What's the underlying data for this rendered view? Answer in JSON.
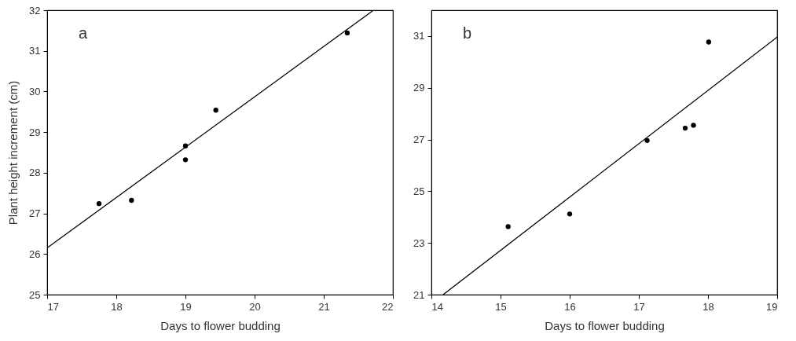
{
  "chart_data": [
    {
      "type": "scatter",
      "xlabel": "Days to flower budding",
      "ylabel": "Plant height increment (cm)",
      "annotations": [
        "a"
      ],
      "xlim": [
        17,
        22
      ],
      "ylim": [
        25,
        32
      ],
      "xticks": [
        17,
        18,
        19,
        20,
        21,
        22
      ],
      "yticks": [
        25,
        26,
        27,
        28,
        29,
        30,
        31,
        32
      ],
      "grid": false,
      "series": [
        {
          "type": "line",
          "marker": "none",
          "line_style": "solid",
          "color": "#000000",
          "x": [
            17,
            21.72
          ],
          "values": [
            26.15,
            32
          ]
        },
        {
          "type": "scatter",
          "marker": "circle",
          "color": "#000000",
          "x": [
            17.75,
            18.22,
            19.0,
            19.0,
            19.44,
            21.34
          ],
          "values": [
            27.24,
            27.32,
            28.66,
            28.32,
            29.54,
            31.44
          ]
        }
      ]
    },
    {
      "type": "scatter",
      "xlabel": "Days to flower budding",
      "annotations": [
        "b"
      ],
      "xlim": [
        14,
        19
      ],
      "ylim": [
        21,
        32
      ],
      "xticks": [
        14,
        15,
        16,
        17,
        18,
        19
      ],
      "yticks": [
        21,
        23,
        25,
        27,
        29,
        31
      ],
      "grid": false,
      "series": [
        {
          "type": "line",
          "marker": "none",
          "line_style": "solid",
          "color": "#000000",
          "x": [
            14.17,
            19
          ],
          "values": [
            21,
            30.96
          ]
        },
        {
          "type": "scatter",
          "marker": "circle",
          "color": "#000000",
          "x": [
            15.11,
            16.0,
            17.12,
            17.67,
            17.79,
            18.01
          ],
          "values": [
            23.63,
            24.12,
            26.96,
            27.44,
            27.55,
            30.77
          ]
        }
      ]
    }
  ]
}
